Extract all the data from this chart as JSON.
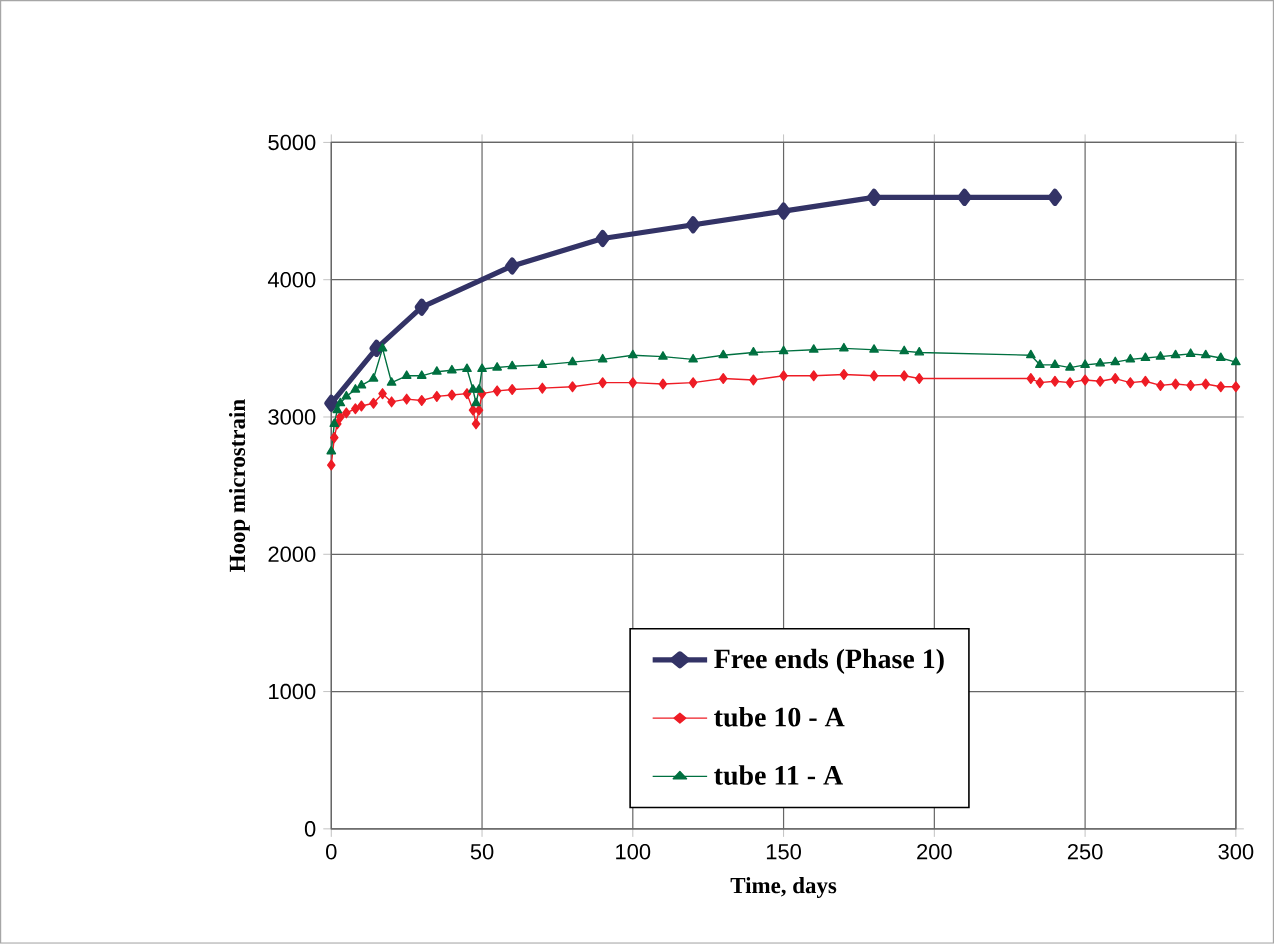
{
  "chart_data": {
    "type": "line",
    "xlabel": "Time, days",
    "ylabel": "Hoop microstrain",
    "xlim": [
      0,
      300
    ],
    "ylim": [
      0,
      5000
    ],
    "xticks": [
      0,
      50,
      100,
      150,
      200,
      250,
      300
    ],
    "yticks": [
      0,
      1000,
      2000,
      3000,
      4000,
      5000
    ],
    "grid": true,
    "legend": "bottom",
    "line_style": "solid",
    "series": [
      {
        "name": "Free ends (Phase 1)",
        "color": "#333366",
        "marker": "diamond",
        "x": [
          0,
          15,
          30,
          60,
          90,
          120,
          150,
          180,
          210,
          240
        ],
        "values": [
          3100,
          3500,
          3800,
          4100,
          4300,
          4400,
          4500,
          4600,
          4600,
          4600
        ]
      },
      {
        "name": "tube 10 - A",
        "color": "#ee1c25",
        "marker": "diamond",
        "x": [
          0,
          1,
          2,
          3,
          5,
          8,
          10,
          14,
          17,
          20,
          25,
          30,
          35,
          40,
          45,
          47,
          48,
          49,
          50,
          55,
          60,
          70,
          80,
          90,
          100,
          110,
          120,
          130,
          140,
          150,
          160,
          170,
          180,
          190,
          195,
          232,
          235,
          240,
          245,
          250,
          255,
          260,
          265,
          270,
          275,
          280,
          285,
          290,
          295,
          300
        ],
        "values": [
          2650,
          2850,
          2950,
          3000,
          3030,
          3060,
          3080,
          3100,
          3170,
          3110,
          3130,
          3120,
          3150,
          3160,
          3170,
          3050,
          2950,
          3050,
          3170,
          3190,
          3200,
          3210,
          3220,
          3250,
          3250,
          3240,
          3250,
          3280,
          3270,
          3300,
          3300,
          3310,
          3300,
          3300,
          3280,
          3280,
          3250,
          3260,
          3250,
          3270,
          3260,
          3280,
          3250,
          3260,
          3230,
          3240,
          3230,
          3240,
          3220,
          3220
        ]
      },
      {
        "name": "tube 11 - A",
        "color": "#007040",
        "marker": "triangle",
        "x": [
          0,
          1,
          2,
          3,
          5,
          8,
          10,
          14,
          17,
          20,
          25,
          30,
          35,
          40,
          45,
          47,
          48,
          49,
          50,
          55,
          60,
          70,
          80,
          90,
          100,
          110,
          120,
          130,
          140,
          150,
          160,
          170,
          180,
          190,
          195,
          232,
          235,
          240,
          245,
          250,
          255,
          260,
          265,
          270,
          275,
          280,
          285,
          290,
          295,
          300
        ],
        "values": [
          2750,
          2950,
          3050,
          3100,
          3150,
          3200,
          3230,
          3280,
          3500,
          3250,
          3300,
          3300,
          3330,
          3340,
          3350,
          3200,
          3100,
          3200,
          3350,
          3360,
          3370,
          3380,
          3400,
          3420,
          3450,
          3440,
          3420,
          3450,
          3470,
          3480,
          3490,
          3500,
          3490,
          3480,
          3470,
          3450,
          3380,
          3380,
          3360,
          3380,
          3390,
          3400,
          3420,
          3430,
          3440,
          3450,
          3460,
          3450,
          3430,
          3400
        ]
      }
    ]
  }
}
